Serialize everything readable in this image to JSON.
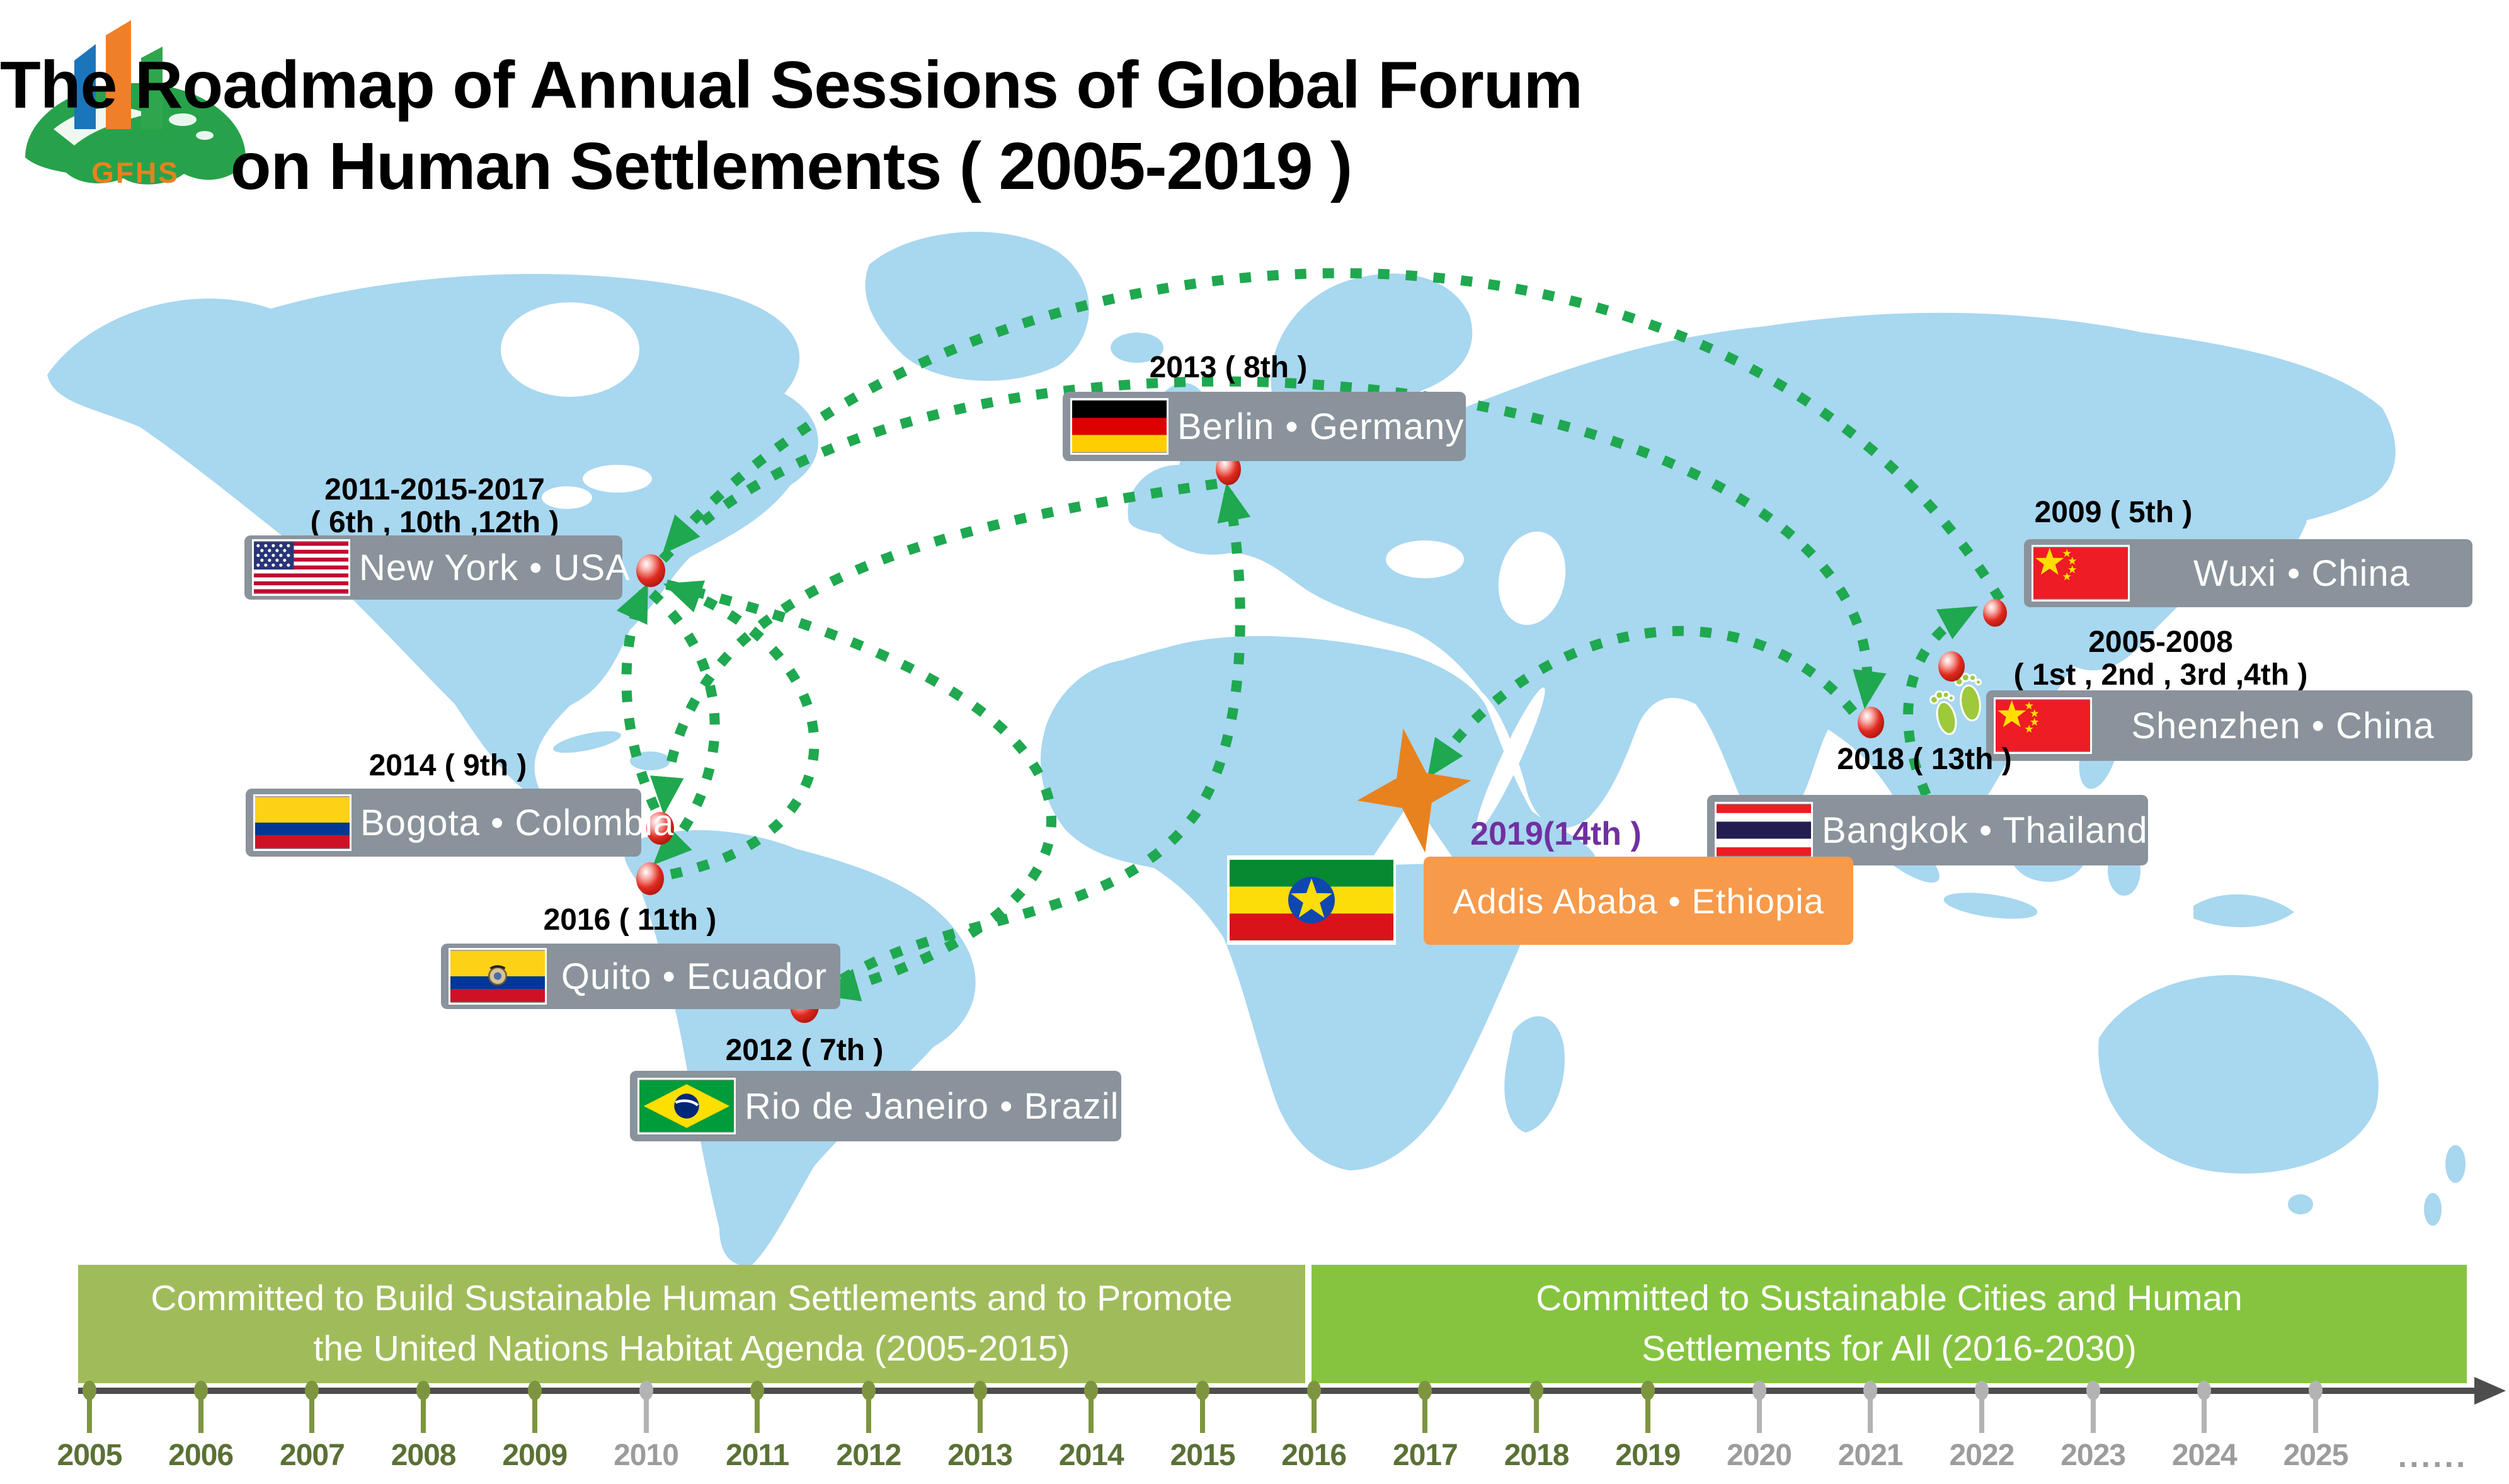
{
  "header": {
    "logo_text": "GFHS",
    "title_line1": "The Roadmap of  Annual Sessions of Global Forum",
    "title_line2": "on Human Settlements ( 2005-2019 )"
  },
  "locations": {
    "shenzhen": {
      "years": "2005-2008",
      "sessions": "( 1st , 2nd , 3rd ,4th )",
      "label": "Shenzhen • China",
      "flag": "china-flag"
    },
    "wuxi": {
      "years": "2009 ( 5th )",
      "label": "Wuxi • China",
      "flag": "china-flag"
    },
    "newyork": {
      "years": "2011-2015-2017",
      "sessions": "( 6th , 10th ,12th )",
      "label": "New York • USA",
      "flag": "usa-flag"
    },
    "rio": {
      "years": "2012 ( 7th )",
      "label": "Rio de Janeiro •  Brazil",
      "flag": "brazil-flag"
    },
    "berlin": {
      "years": "2013 ( 8th )",
      "label": "Berlin • Germany",
      "flag": "germany-flag"
    },
    "bogota": {
      "years": "2014 ( 9th )",
      "label": "Bogota • Colombia",
      "flag": "colombia-flag"
    },
    "quito": {
      "years": "2016 ( 11th )",
      "label": "Quito • Ecuador",
      "flag": "ecuador-flag"
    },
    "bangkok": {
      "years": "2018 ( 13th )",
      "label": "Bangkok • Thailand",
      "flag": "thailand-flag"
    },
    "addis": {
      "years": "2019(14th )",
      "label": "Addis Ababa • Ethiopia",
      "flag": "ethiopia-flag"
    }
  },
  "banners": {
    "left": "Committed to Build Sustainable Human Settlements and to Promote the United Nations Habitat Agenda (2005-2015)",
    "right": "Committed to Sustainable Cities and Human Settlements for All (2016-2030)"
  },
  "timeline": {
    "years": [
      {
        "label": "2005",
        "state": "green"
      },
      {
        "label": "2006",
        "state": "green"
      },
      {
        "label": "2007",
        "state": "green"
      },
      {
        "label": "2008",
        "state": "green"
      },
      {
        "label": "2009",
        "state": "green"
      },
      {
        "label": "2010",
        "state": "gray"
      },
      {
        "label": "2011",
        "state": "green"
      },
      {
        "label": "2012",
        "state": "green"
      },
      {
        "label": "2013",
        "state": "green"
      },
      {
        "label": "2014",
        "state": "green"
      },
      {
        "label": "2015",
        "state": "green"
      },
      {
        "label": "2016",
        "state": "green"
      },
      {
        "label": "2017",
        "state": "green"
      },
      {
        "label": "2018",
        "state": "green"
      },
      {
        "label": "2019",
        "state": "green"
      },
      {
        "label": "2020",
        "state": "gray"
      },
      {
        "label": "2021",
        "state": "gray"
      },
      {
        "label": "2022",
        "state": "gray"
      },
      {
        "label": "2023",
        "state": "gray"
      },
      {
        "label": "2024",
        "state": "gray"
      },
      {
        "label": "2025",
        "state": "gray"
      }
    ],
    "ellipsis": "......"
  },
  "routes": [
    {
      "from": "shenzhen",
      "to": "wuxi"
    },
    {
      "from": "wuxi",
      "to": "newyork"
    },
    {
      "from": "newyork",
      "to": "rio"
    },
    {
      "from": "rio",
      "to": "berlin"
    },
    {
      "from": "berlin",
      "to": "bogota"
    },
    {
      "from": "bogota",
      "to": "newyork"
    },
    {
      "from": "newyork",
      "to": "quito"
    },
    {
      "from": "quito",
      "to": "newyork"
    },
    {
      "from": "newyork",
      "to": "bangkok"
    },
    {
      "from": "bangkok",
      "to": "addis"
    }
  ],
  "colors": {
    "map_land_blue": "#A8D7F0",
    "route_green": "#1FA84F",
    "label_bar_gray": "#8A939B",
    "highlight_orange_bar": "#F79A4B",
    "star_orange": "#E8821E",
    "marker_red": "#E02B20",
    "purple_2019": "#7030A0",
    "banner_left_green": "#A0BC5A",
    "banner_right_green": "#86C440",
    "timeline_dark_gray": "#4D4D4D",
    "active_tick_olive": "#7E953F",
    "inactive_tick_gray": "#B3B3B3"
  }
}
